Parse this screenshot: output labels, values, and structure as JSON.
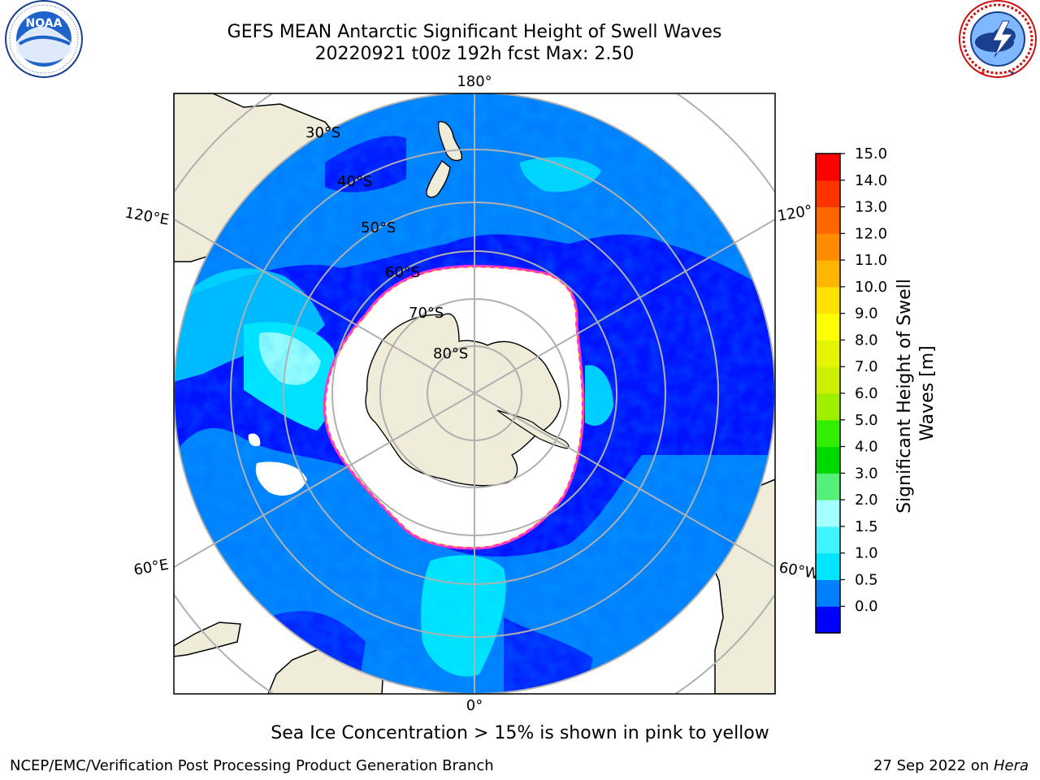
{
  "title_line1": "GEFS MEAN Antarctic Significant Height of Swell Waves",
  "title_line2": "20220921 t00z 192h fcst   Max: 2.50",
  "caption": "Sea Ice Concentration > 15% is shown in pink to yellow",
  "footer_left": "NCEP/EMC/Verification Post Processing Product Generation Branch",
  "footer_date": "27 Sep 2022 on ",
  "footer_host": "Hera",
  "map": {
    "lon_labels": [
      "180°",
      "120°E",
      "120°",
      "60°E",
      "60°W",
      "0°"
    ],
    "lat_labels": [
      "30°S",
      "40°S",
      "50°S",
      "60°S",
      "70°S",
      "80°S"
    ]
  },
  "colorbar": {
    "label": "Significant Height of Swell Waves [m]",
    "label_line1": "Significant Height of Swell",
    "label_line2": "Waves [m]",
    "ticks": [
      "15.0",
      "14.0",
      "13.0",
      "12.0",
      "11.0",
      "10.0",
      "9.0",
      "8.0",
      "7.0",
      "6.0",
      "5.0",
      "4.0",
      "3.0",
      "2.0",
      "1.5",
      "1.0",
      "0.5",
      "0.0"
    ],
    "colors": [
      "#0000ff",
      "#0080ff",
      "#00e5ff",
      "#3ff4ff",
      "#a6ffff",
      "#55f07a",
      "#00d900",
      "#33ee00",
      "#9ff000",
      "#ccf000",
      "#e5f500",
      "#ffff00",
      "#ffe000",
      "#ffb600",
      "#ff8c00",
      "#ff6600",
      "#ff3300",
      "#ff0000"
    ]
  },
  "logos": {
    "noaa": "NOAA",
    "noaa_ring": "NATIONAL OCEANIC AND ATMOSPHERIC ADMINISTRATION · U.S. DEPARTMENT OF COMMERCE",
    "nws_ring": "NATIONAL WEATHER SERVICE"
  }
}
